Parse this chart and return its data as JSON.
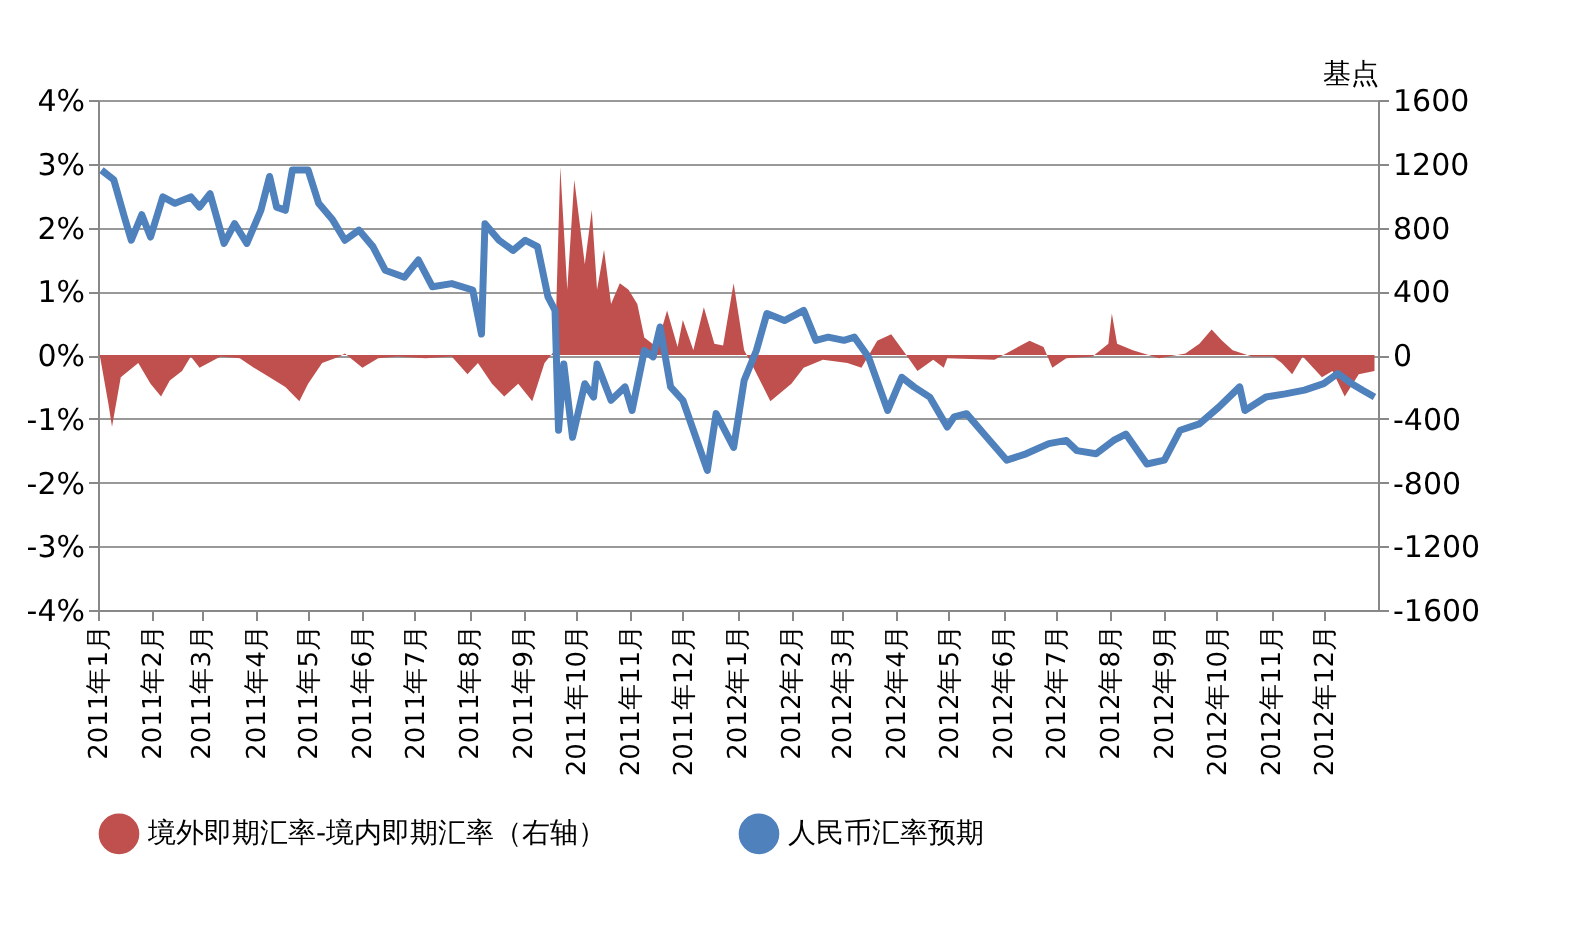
{
  "chart_data": {
    "type": "line",
    "y2label": "基点",
    "xlim": [
      "2011-01-01",
      "2013-01-01"
    ],
    "xticks": [
      {
        "value": "2011-01-01",
        "label": "2011年1月"
      },
      {
        "value": "2011-02-01",
        "label": "2011年2月"
      },
      {
        "value": "2011-03-01",
        "label": "2011年3月"
      },
      {
        "value": "2011-04-01",
        "label": "2011年4月"
      },
      {
        "value": "2011-05-01",
        "label": "2011年5月"
      },
      {
        "value": "2011-06-01",
        "label": "2011年6月"
      },
      {
        "value": "2011-07-01",
        "label": "2011年7月"
      },
      {
        "value": "2011-08-01",
        "label": "2011年8月"
      },
      {
        "value": "2011-09-01",
        "label": "2011年9月"
      },
      {
        "value": "2011-10-01",
        "label": "2011年10月"
      },
      {
        "value": "2011-11-01",
        "label": "2011年11月"
      },
      {
        "value": "2011-12-01",
        "label": "2011年12月"
      },
      {
        "value": "2012-01-01",
        "label": "2012年1月"
      },
      {
        "value": "2012-02-01",
        "label": "2012年2月"
      },
      {
        "value": "2012-03-01",
        "label": "2012年3月"
      },
      {
        "value": "2012-04-01",
        "label": "2012年4月"
      },
      {
        "value": "2012-05-01",
        "label": "2012年5月"
      },
      {
        "value": "2012-06-01",
        "label": "2012年6月"
      },
      {
        "value": "2012-07-01",
        "label": "2012年7月"
      },
      {
        "value": "2012-08-01",
        "label": "2012年8月"
      },
      {
        "value": "2012-09-01",
        "label": "2012年9月"
      },
      {
        "value": "2012-10-01",
        "label": "2012年10月"
      },
      {
        "value": "2012-11-01",
        "label": "2012年11月"
      },
      {
        "value": "2012-12-01",
        "label": "2012年12月"
      }
    ],
    "ylim": [
      -4,
      4
    ],
    "yticks": [
      {
        "value": -4,
        "label": "-4%"
      },
      {
        "value": -3,
        "label": "-3%"
      },
      {
        "value": -2,
        "label": "-2%"
      },
      {
        "value": -1,
        "label": "-1%"
      },
      {
        "value": 0,
        "label": "0%"
      },
      {
        "value": 1,
        "label": "1%"
      },
      {
        "value": 2,
        "label": "2%"
      },
      {
        "value": 3,
        "label": "3%"
      },
      {
        "value": 4,
        "label": "4%"
      }
    ],
    "y2lim": [
      -1600,
      1600
    ],
    "y2ticks": [
      -1600,
      -1200,
      -800,
      -400,
      0,
      400,
      800,
      1200,
      1600
    ],
    "grid": "y",
    "legend": "bottom",
    "marker": "none",
    "series": [
      {
        "name": "境外即期汇率-境内即期汇率（右轴）",
        "type": "area",
        "axis": "y2",
        "color": "#c0504d",
        "x": [
          "2011-01-02",
          "2011-01-07",
          "2011-01-09",
          "2011-01-14",
          "2011-01-24",
          "2011-01-31",
          "2011-02-06",
          "2011-02-11",
          "2011-02-18",
          "2011-02-23",
          "2011-02-28",
          "2011-03-12",
          "2011-03-23",
          "2011-03-31",
          "2011-04-09",
          "2011-04-18",
          "2011-04-26",
          "2011-05-01",
          "2011-05-09",
          "2011-05-19",
          "2011-05-22",
          "2011-06-01",
          "2011-06-10",
          "2011-06-21",
          "2011-07-07",
          "2011-07-22",
          "2011-07-31",
          "2011-08-06",
          "2011-08-14",
          "2011-08-21",
          "2011-08-29",
          "2011-09-06",
          "2011-09-13",
          "2011-09-19",
          "2011-09-22",
          "2011-09-26",
          "2011-09-30",
          "2011-10-06",
          "2011-10-10",
          "2011-10-13",
          "2011-10-17",
          "2011-10-21",
          "2011-10-26",
          "2011-10-31",
          "2011-11-05",
          "2011-11-09",
          "2011-11-16",
          "2011-11-22",
          "2011-11-28",
          "2011-12-01",
          "2011-12-07",
          "2011-12-13",
          "2011-12-19",
          "2011-12-24",
          "2011-12-30",
          "2012-01-05",
          "2012-01-09",
          "2012-01-20",
          "2012-02-01",
          "2012-02-08",
          "2012-02-19",
          "2012-03-04",
          "2012-03-12",
          "2012-03-21",
          "2012-03-29",
          "2012-04-06",
          "2012-04-13",
          "2012-04-22",
          "2012-04-28",
          "2012-04-30",
          "2012-05-27",
          "2012-06-16",
          "2012-06-24",
          "2012-06-29",
          "2012-07-07",
          "2012-07-22",
          "2012-07-31",
          "2012-08-02",
          "2012-08-05",
          "2012-08-14",
          "2012-08-29",
          "2012-09-13",
          "2012-09-21",
          "2012-09-28",
          "2012-10-04",
          "2012-10-10",
          "2012-10-21",
          "2012-11-02",
          "2012-11-07",
          "2012-11-13",
          "2012-11-19",
          "2012-11-30",
          "2012-12-06",
          "2012-12-13",
          "2012-12-21",
          "2012-12-30"
        ],
        "values": [
          0,
          -310,
          -450,
          -140,
          -50,
          -180,
          -260,
          -160,
          -100,
          -10,
          -80,
          -10,
          -20,
          -80,
          -140,
          -200,
          -290,
          -180,
          -50,
          -10,
          10,
          -80,
          -20,
          -10,
          -20,
          -10,
          -120,
          -50,
          -180,
          -260,
          -180,
          -290,
          -50,
          30,
          1180,
          410,
          1100,
          570,
          910,
          410,
          660,
          320,
          450,
          410,
          320,
          110,
          50,
          280,
          50,
          220,
          30,
          300,
          70,
          60,
          450,
          30,
          -50,
          -290,
          -180,
          -80,
          -30,
          -50,
          -80,
          90,
          130,
          10,
          -100,
          -30,
          -80,
          -20,
          -30,
          90,
          50,
          -80,
          -20,
          -10,
          70,
          260,
          70,
          30,
          -20,
          10,
          70,
          160,
          90,
          30,
          -10,
          -10,
          -50,
          -120,
          -10,
          -140,
          -100,
          -260,
          -120,
          -100
        ]
      },
      {
        "name": "人民币汇率预期",
        "type": "line",
        "color": "#4f81bd",
        "x": [
          "2011-01-03",
          "2011-01-10",
          "2011-01-16",
          "2011-01-20",
          "2011-01-26",
          "2011-01-31",
          "2011-02-07",
          "2011-02-14",
          "2011-02-23",
          "2011-02-28",
          "2011-03-06",
          "2011-03-14",
          "2011-03-20",
          "2011-03-27",
          "2011-04-04",
          "2011-04-09",
          "2011-04-13",
          "2011-04-18",
          "2011-04-22",
          "2011-05-01",
          "2011-05-07",
          "2011-05-15",
          "2011-05-22",
          "2011-05-30",
          "2011-06-07",
          "2011-06-14",
          "2011-06-25",
          "2011-07-03",
          "2011-07-11",
          "2011-07-22",
          "2011-08-03",
          "2011-08-08",
          "2011-08-10",
          "2011-08-18",
          "2011-08-26",
          "2011-09-02",
          "2011-09-09",
          "2011-09-15",
          "2011-09-19",
          "2011-09-21",
          "2011-09-24",
          "2011-09-29",
          "2011-10-06",
          "2011-10-11",
          "2011-10-13",
          "2011-10-21",
          "2011-10-29",
          "2011-11-02",
          "2011-11-09",
          "2011-11-14",
          "2011-11-18",
          "2011-11-24",
          "2011-12-01",
          "2011-12-07",
          "2011-12-15",
          "2011-12-20",
          "2011-12-30",
          "2012-01-05",
          "2012-01-12",
          "2012-01-18",
          "2012-01-28",
          "2012-02-08",
          "2012-02-15",
          "2012-02-22",
          "2012-03-02",
          "2012-03-08",
          "2012-03-16",
          "2012-03-27",
          "2012-04-04",
          "2012-04-11",
          "2012-04-20",
          "2012-04-30",
          "2012-05-04",
          "2012-05-11",
          "2012-05-21",
          "2012-06-03",
          "2012-06-14",
          "2012-06-27",
          "2012-07-07",
          "2012-07-13",
          "2012-07-24",
          "2012-08-03",
          "2012-08-10",
          "2012-08-22",
          "2012-09-01",
          "2012-09-10",
          "2012-09-21",
          "2012-10-02",
          "2012-10-14",
          "2012-10-17",
          "2012-10-29",
          "2012-11-09",
          "2012-11-20",
          "2012-12-01",
          "2012-12-09",
          "2012-12-17",
          "2012-12-23",
          "2012-12-30"
        ],
        "values": [
          2.9,
          2.75,
          2.17,
          1.8,
          2.2,
          1.85,
          2.48,
          2.38,
          2.48,
          2.32,
          2.53,
          1.75,
          2.06,
          1.75,
          2.27,
          2.8,
          2.32,
          2.27,
          2.9,
          2.9,
          2.38,
          2.12,
          1.8,
          1.96,
          1.7,
          1.33,
          1.22,
          1.49,
          1.07,
          1.12,
          1.02,
          0.33,
          2.06,
          1.8,
          1.64,
          1.8,
          1.7,
          0.91,
          0.7,
          -1.18,
          -0.14,
          -1.29,
          -0.45,
          -0.66,
          -0.14,
          -0.71,
          -0.5,
          -0.87,
          0.07,
          -0.03,
          0.44,
          -0.5,
          -0.71,
          -1.18,
          -1.81,
          -0.92,
          -1.45,
          -0.4,
          0.07,
          0.65,
          0.54,
          0.7,
          0.23,
          0.28,
          0.23,
          0.28,
          -0.03,
          -0.87,
          -0.35,
          -0.5,
          -0.66,
          -1.13,
          -0.97,
          -0.92,
          -1.24,
          -1.65,
          -1.55,
          -1.39,
          -1.34,
          -1.5,
          -1.55,
          -1.34,
          -1.24,
          -1.71,
          -1.65,
          -1.18,
          -1.08,
          -0.82,
          -0.5,
          -0.87,
          -0.66,
          -0.61,
          -0.55,
          -0.45,
          -0.29,
          -0.45,
          -0.55,
          -0.66
        ]
      }
    ]
  }
}
